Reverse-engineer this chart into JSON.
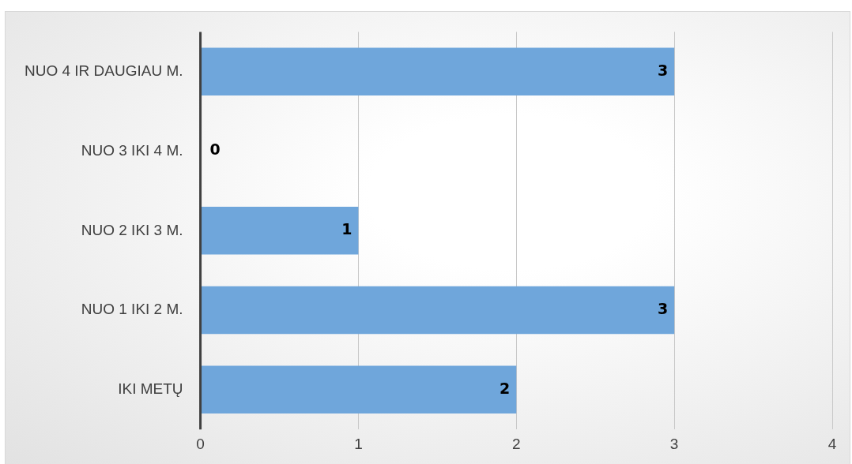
{
  "chart_data": {
    "type": "bar",
    "orientation": "horizontal",
    "categories": [
      "NUO 4 IR DAUGIAU M.",
      "NUO 3 IKI 4 M.",
      "NUO 2 IKI 3 M.",
      "NUO 1 IKI 2 M.",
      "IKI METŲ"
    ],
    "values": [
      3,
      0,
      1,
      3,
      2
    ],
    "color": "#6fa6db",
    "xlim": [
      0,
      4
    ],
    "xticks": [
      0,
      1,
      2,
      3,
      4
    ],
    "grid": "x",
    "data_labels": true,
    "legend": false
  }
}
